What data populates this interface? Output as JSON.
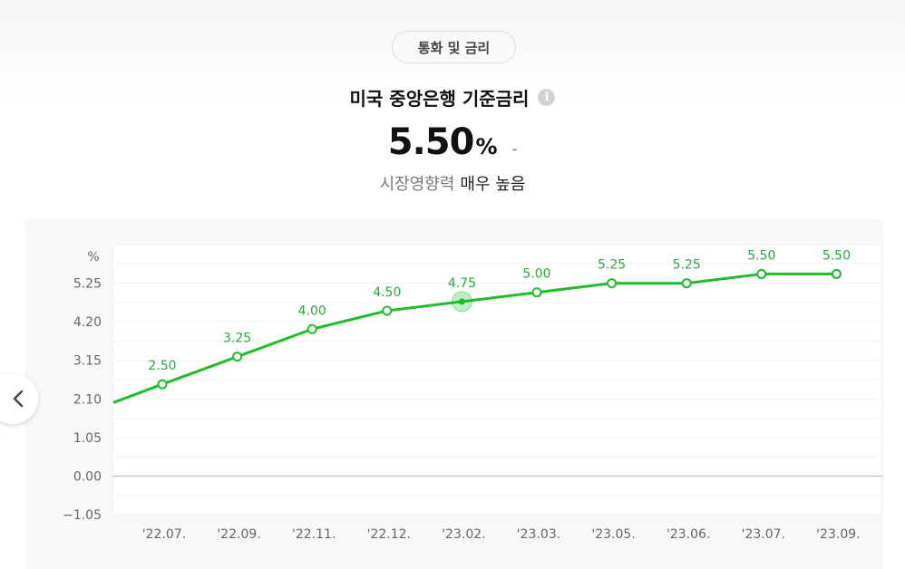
{
  "header": {
    "tag_label": "통화 및 금리",
    "title": "미국 중앙은행 기준금리",
    "info_icon": "info-icon",
    "value": "5.50",
    "unit": "%",
    "change": "-",
    "influence_label": "시장영향력",
    "influence_value": "매우 높음"
  },
  "nav": {
    "prev_icon": "chevron-left-icon"
  },
  "colors": {
    "line": "#1fbd2a",
    "label": "#2aa83a",
    "axis_text": "#666666"
  },
  "chart_data": {
    "type": "line",
    "title": "",
    "xlabel": "",
    "ylabel": "%",
    "ylim": [
      -1.05,
      6.3
    ],
    "yticks": [
      "−1.05",
      "0.00",
      "1.05",
      "2.10",
      "3.15",
      "4.20",
      "5.25"
    ],
    "yticks_values": [
      -1.05,
      0.0,
      1.05,
      2.1,
      3.15,
      4.2,
      5.25
    ],
    "categories": [
      "'22.07.",
      "'22.09.",
      "'22.11.",
      "'22.12.",
      "'23.02.",
      "'23.03.",
      "'23.05.",
      "'23.06.",
      "'23.07.",
      "'23.09."
    ],
    "values": [
      2.5,
      3.25,
      4.0,
      4.5,
      4.75,
      5.0,
      5.25,
      5.25,
      5.5,
      5.5
    ],
    "value_labels": [
      "2.50",
      "3.25",
      "4.00",
      "4.50",
      "4.75",
      "5.00",
      "5.25",
      "5.25",
      "5.50",
      "5.50"
    ],
    "leading_value": 2.0,
    "highlight_index": 4,
    "grid": true,
    "legend": "none"
  }
}
